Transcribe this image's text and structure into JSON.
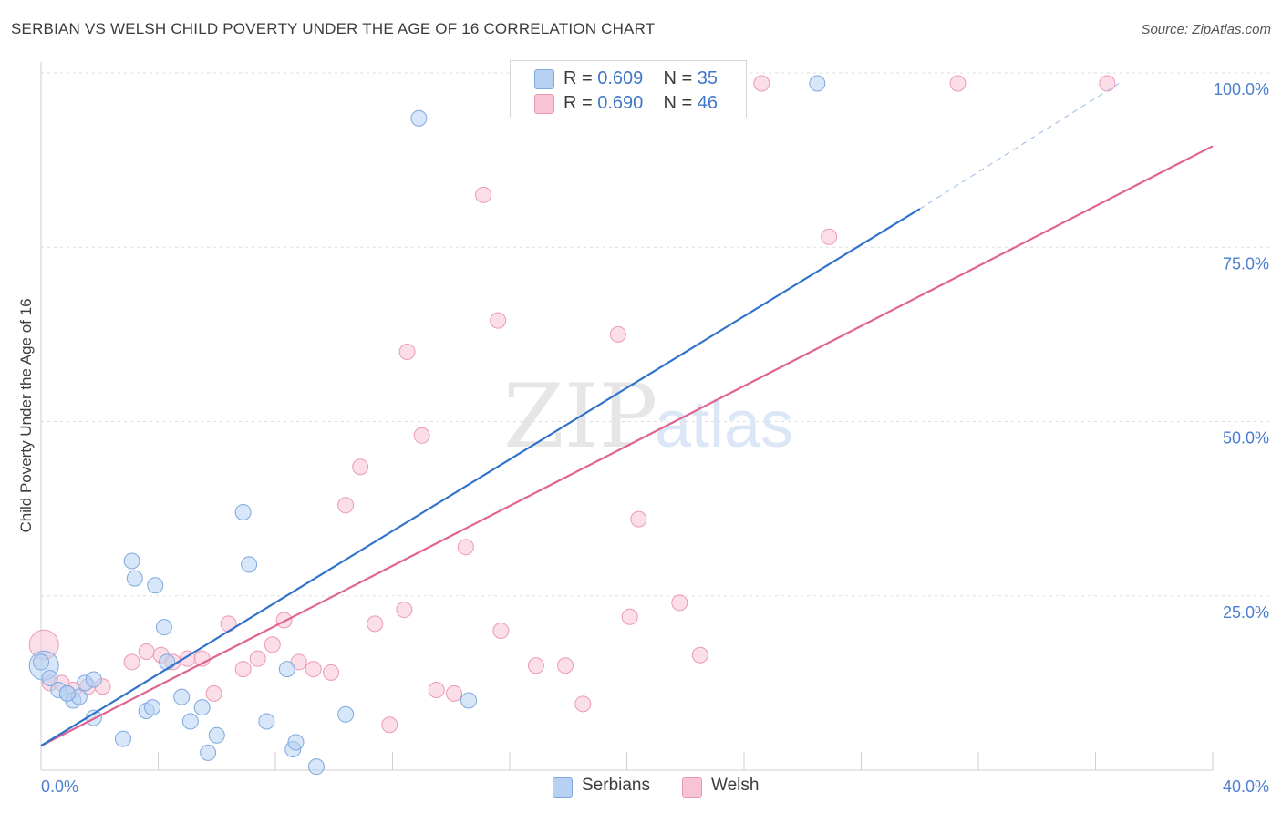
{
  "header": {
    "title": "SERBIAN VS WELSH CHILD POVERTY UNDER THE AGE OF 16 CORRELATION CHART",
    "source": "Source: ZipAtlas.com"
  },
  "legend_top": {
    "serbians": {
      "r_label": "R = ",
      "r_value": "0.609",
      "n_label": "N = ",
      "n_value": "35"
    },
    "welsh": {
      "r_label": "R = ",
      "r_value": "0.690",
      "n_label": "N = ",
      "n_value": "46"
    }
  },
  "legend_bottom": {
    "serbians": "Serbians",
    "welsh": "Welsh"
  },
  "watermark": {
    "zip": "ZIP",
    "atlas": "atlas"
  },
  "colors": {
    "serbians_fill": "#b7d1f2",
    "serbians_stroke": "#7fa8df",
    "serbians_line": "#2f72cc",
    "welsh_fill": "#f8c3d3",
    "welsh_stroke": "#ec9ab4",
    "welsh_line": "#e0648f",
    "tick_text": "#4a7fcf",
    "grid": "#dddddd"
  },
  "chart_data": {
    "type": "scatter",
    "title": "SERBIAN VS WELSH CHILD POVERTY UNDER THE AGE OF 16 CORRELATION CHART",
    "xlabel": "",
    "ylabel": "Child Poverty Under the Age of 16",
    "xlim": [
      0,
      40
    ],
    "ylim": [
      0,
      100
    ],
    "x_tick_labels": [
      "0.0%",
      "40.0%"
    ],
    "y_ticks": [
      25,
      50,
      75,
      100
    ],
    "y_tick_labels": [
      "25.0%",
      "50.0%",
      "75.0%",
      "100.0%"
    ],
    "grid": true,
    "legend_position": "top-center",
    "series": [
      {
        "name": "Serbians",
        "points": [
          [
            0.1,
            15.0
          ],
          [
            0.3,
            13.2
          ],
          [
            0.6,
            11.5
          ],
          [
            0.9,
            11.0
          ],
          [
            1.1,
            10.0
          ],
          [
            1.3,
            10.5
          ],
          [
            1.5,
            12.5
          ],
          [
            1.8,
            13.0
          ],
          [
            1.8,
            7.5
          ],
          [
            2.8,
            4.5
          ],
          [
            3.1,
            30.0
          ],
          [
            3.2,
            27.5
          ],
          [
            3.6,
            8.5
          ],
          [
            3.8,
            9.0
          ],
          [
            3.9,
            26.5
          ],
          [
            4.2,
            20.5
          ],
          [
            4.3,
            15.5
          ],
          [
            4.8,
            10.5
          ],
          [
            5.1,
            7.0
          ],
          [
            5.5,
            9.0
          ],
          [
            5.7,
            2.5
          ],
          [
            6.0,
            5.0
          ],
          [
            6.9,
            37.0
          ],
          [
            7.1,
            29.5
          ],
          [
            7.7,
            7.0
          ],
          [
            8.4,
            14.5
          ],
          [
            8.6,
            3.0
          ],
          [
            8.7,
            4.0
          ],
          [
            9.4,
            0.5
          ],
          [
            10.4,
            8.0
          ],
          [
            12.9,
            93.5
          ],
          [
            14.6,
            10.0
          ],
          [
            26.5,
            98.5
          ],
          [
            0.0,
            15.5
          ],
          [
            0.9,
            11.0
          ]
        ]
      },
      {
        "name": "Welsh",
        "points": [
          [
            0.1,
            18.0
          ],
          [
            0.3,
            12.5
          ],
          [
            0.7,
            12.5
          ],
          [
            1.1,
            11.5
          ],
          [
            1.6,
            12.0
          ],
          [
            2.1,
            12.0
          ],
          [
            3.1,
            15.5
          ],
          [
            3.6,
            17.0
          ],
          [
            4.1,
            16.5
          ],
          [
            4.5,
            15.5
          ],
          [
            5.0,
            16.0
          ],
          [
            5.5,
            16.0
          ],
          [
            5.9,
            11.0
          ],
          [
            6.4,
            21.0
          ],
          [
            6.9,
            14.5
          ],
          [
            7.4,
            16.0
          ],
          [
            7.9,
            18.0
          ],
          [
            8.3,
            21.5
          ],
          [
            8.8,
            15.5
          ],
          [
            9.3,
            14.5
          ],
          [
            9.9,
            14.0
          ],
          [
            10.4,
            38.0
          ],
          [
            10.9,
            43.5
          ],
          [
            11.4,
            21.0
          ],
          [
            11.9,
            6.5
          ],
          [
            12.4,
            23.0
          ],
          [
            12.5,
            60.0
          ],
          [
            13.0,
            48.0
          ],
          [
            13.5,
            11.5
          ],
          [
            14.1,
            11.0
          ],
          [
            14.5,
            32.0
          ],
          [
            15.1,
            82.5
          ],
          [
            15.6,
            64.5
          ],
          [
            15.7,
            20.0
          ],
          [
            16.9,
            15.0
          ],
          [
            17.9,
            15.0
          ],
          [
            18.5,
            9.5
          ],
          [
            19.7,
            62.5
          ],
          [
            20.1,
            22.0
          ],
          [
            20.4,
            36.0
          ],
          [
            21.8,
            24.0
          ],
          [
            22.5,
            16.5
          ],
          [
            24.6,
            98.5
          ],
          [
            26.9,
            76.5
          ],
          [
            31.3,
            98.5
          ],
          [
            36.4,
            98.5
          ]
        ]
      }
    ],
    "trendlines": [
      {
        "name": "Serbians",
        "x": [
          0,
          30.0
        ],
        "y": [
          3.5,
          80.5
        ],
        "extension_x": [
          30.0,
          36.8
        ],
        "extension_y": [
          80.5,
          98.5
        ]
      },
      {
        "name": "Welsh",
        "x": [
          0,
          40.0
        ],
        "y": [
          3.5,
          89.5
        ]
      }
    ]
  }
}
